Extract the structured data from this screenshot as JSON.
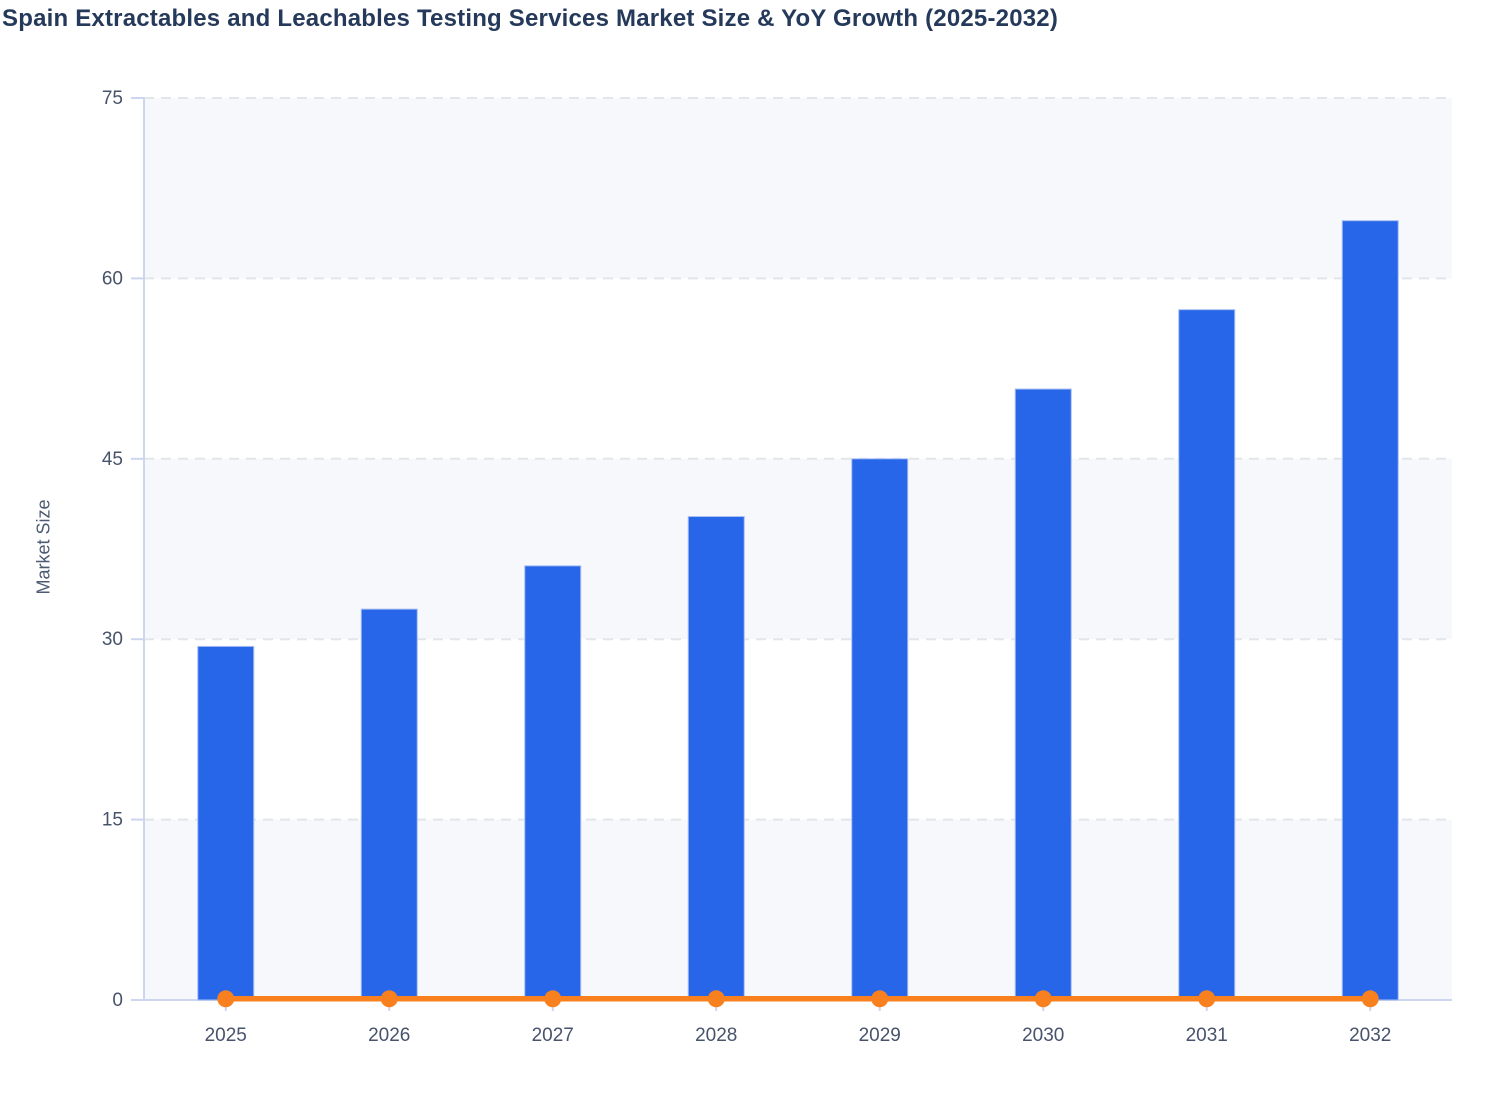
{
  "page": {
    "background": "#ffffff"
  },
  "chart_data": {
    "type": "bar",
    "title": "Spain Extractables and Leachables Testing Services Market Size & YoY Growth (2025-2032)",
    "xlabel": "",
    "ylabel": "Market Size",
    "categories": [
      "2025",
      "2026",
      "2027",
      "2028",
      "2029",
      "2030",
      "2031",
      "2032"
    ],
    "series": [
      {
        "name": "Market Size",
        "type": "bar",
        "color": "#2766e9",
        "values": [
          29.4,
          32.5,
          36.1,
          40.2,
          45,
          50.8,
          57.4,
          64.8
        ]
      },
      {
        "name": "YoY Growth",
        "type": "line",
        "color": "#f8801e",
        "values": [
          0.1,
          0.1,
          0.1,
          0.1,
          0.1,
          0.1,
          0.1,
          0.1
        ],
        "note": "line renders flat along the 0 baseline with a round marker at every year"
      }
    ],
    "ylim": [
      0,
      75
    ],
    "yticks": [
      0,
      15,
      30,
      45,
      60,
      75
    ],
    "grid": "horizontal dashed",
    "plot_bands": [
      [
        0,
        15
      ],
      [
        30,
        45
      ],
      [
        60,
        75
      ]
    ],
    "legend": "none"
  },
  "style": {
    "title_color": "#25395a",
    "axis_line_color": "#cdd6ef",
    "grid_color": "#e2e5ea",
    "band_fill": "#f7f8fb",
    "tick_label_color": "#47536b",
    "axis_title_color": "#4c5a72",
    "bar_color": "#2766e9",
    "bar_stroke": "#a8bef3",
    "line_color": "#f8801e"
  }
}
